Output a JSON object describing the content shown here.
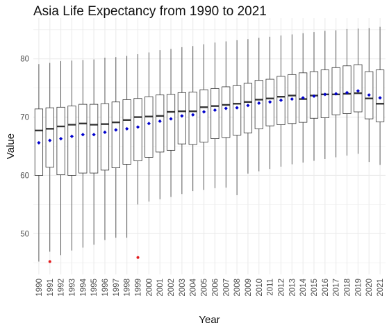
{
  "chart_data": {
    "type": "box",
    "title": "Asia Life Expectancy from 1990 to 2021",
    "xlabel": "Year",
    "ylabel": "Value",
    "ylim": [
      43,
      87
    ],
    "y_ticks": [
      50,
      60,
      70,
      80
    ],
    "grid": true,
    "legend": "none",
    "colors": {
      "box_fill": "#ffffff",
      "box_stroke": "#333333",
      "median": "#333333",
      "mean_point": "#0000cd",
      "outlier": "#e31a1c",
      "grid": "#ebebeb"
    },
    "categories": [
      "1990",
      "1991",
      "1992",
      "1993",
      "1994",
      "1995",
      "1996",
      "1997",
      "1998",
      "1999",
      "2000",
      "2001",
      "2002",
      "2003",
      "2004",
      "2005",
      "2006",
      "2007",
      "2008",
      "2009",
      "2010",
      "2011",
      "2012",
      "2013",
      "2014",
      "2015",
      "2016",
      "2017",
      "2018",
      "2019",
      "2020",
      "2021"
    ],
    "boxes": [
      {
        "x": "1990",
        "min": 45.2,
        "q1": 60.0,
        "median": 67.7,
        "q3": 71.4,
        "max": 79.1,
        "mean": 65.6
      },
      {
        "x": "1991",
        "min": 46.9,
        "q1": 61.4,
        "median": 68.0,
        "q3": 71.6,
        "max": 79.3,
        "mean": 66.0,
        "outliers": [
          45.2
        ]
      },
      {
        "x": "1992",
        "min": 46.3,
        "q1": 60.1,
        "median": 68.4,
        "q3": 71.7,
        "max": 79.6,
        "mean": 66.3
      },
      {
        "x": "1993",
        "min": 47.1,
        "q1": 60.0,
        "median": 68.7,
        "q3": 71.9,
        "max": 79.7,
        "mean": 66.7
      },
      {
        "x": "1994",
        "min": 47.6,
        "q1": 60.4,
        "median": 68.9,
        "q3": 72.2,
        "max": 79.8,
        "mean": 67.0
      },
      {
        "x": "1995",
        "min": 48.1,
        "q1": 60.4,
        "median": 68.7,
        "q3": 72.2,
        "max": 79.9,
        "mean": 67.0
      },
      {
        "x": "1996",
        "min": 48.9,
        "q1": 60.9,
        "median": 68.8,
        "q3": 72.3,
        "max": 80.2,
        "mean": 67.4
      },
      {
        "x": "1997",
        "min": 49.3,
        "q1": 61.3,
        "median": 69.1,
        "q3": 72.6,
        "max": 80.3,
        "mean": 67.8
      },
      {
        "x": "1998",
        "min": 49.3,
        "q1": 61.9,
        "median": 69.5,
        "q3": 73.0,
        "max": 80.5,
        "mean": 68.0
      },
      {
        "x": "1999",
        "min": 55.0,
        "q1": 62.5,
        "median": 70.0,
        "q3": 73.2,
        "max": 80.8,
        "mean": 68.3,
        "outliers": [
          45.9
        ]
      },
      {
        "x": "2000",
        "min": 55.5,
        "q1": 63.1,
        "median": 70.1,
        "q3": 73.5,
        "max": 81.1,
        "mean": 68.9
      },
      {
        "x": "2001",
        "min": 55.9,
        "q1": 64.0,
        "median": 70.2,
        "q3": 73.8,
        "max": 81.5,
        "mean": 69.3
      },
      {
        "x": "2002",
        "min": 56.3,
        "q1": 64.3,
        "median": 70.9,
        "q3": 73.9,
        "max": 81.7,
        "mean": 69.7
      },
      {
        "x": "2003",
        "min": 56.8,
        "q1": 65.4,
        "median": 71.0,
        "q3": 74.2,
        "max": 82.0,
        "mean": 70.2
      },
      {
        "x": "2004",
        "min": 57.3,
        "q1": 65.3,
        "median": 71.0,
        "q3": 74.3,
        "max": 82.2,
        "mean": 70.4
      },
      {
        "x": "2005",
        "min": 57.5,
        "q1": 65.7,
        "median": 71.7,
        "q3": 74.7,
        "max": 82.5,
        "mean": 70.9
      },
      {
        "x": "2006",
        "min": 57.8,
        "q1": 66.3,
        "median": 71.9,
        "q3": 74.9,
        "max": 82.8,
        "mean": 71.2
      },
      {
        "x": "2007",
        "min": 57.9,
        "q1": 66.5,
        "median": 72.1,
        "q3": 75.2,
        "max": 83.0,
        "mean": 71.5
      },
      {
        "x": "2008",
        "min": 56.6,
        "q1": 66.9,
        "median": 72.3,
        "q3": 75.4,
        "max": 83.2,
        "mean": 71.6
      },
      {
        "x": "2009",
        "min": 60.3,
        "q1": 67.3,
        "median": 72.6,
        "q3": 75.8,
        "max": 83.4,
        "mean": 72.0
      },
      {
        "x": "2010",
        "min": 60.7,
        "q1": 68.0,
        "median": 73.0,
        "q3": 76.3,
        "max": 83.6,
        "mean": 72.4
      },
      {
        "x": "2011",
        "min": 61.1,
        "q1": 68.5,
        "median": 73.2,
        "q3": 76.5,
        "max": 83.8,
        "mean": 72.6
      },
      {
        "x": "2012",
        "min": 61.5,
        "q1": 68.7,
        "median": 73.5,
        "q3": 77.0,
        "max": 84.0,
        "mean": 72.9
      },
      {
        "x": "2013",
        "min": 61.9,
        "q1": 68.9,
        "median": 73.7,
        "q3": 77.3,
        "max": 84.2,
        "mean": 73.1
      },
      {
        "x": "2014",
        "min": 62.2,
        "q1": 69.1,
        "median": 73.1,
        "q3": 77.6,
        "max": 84.4,
        "mean": 73.3
      },
      {
        "x": "2015",
        "min": 62.5,
        "q1": 69.8,
        "median": 73.7,
        "q3": 77.8,
        "max": 84.6,
        "mean": 73.6
      },
      {
        "x": "2016",
        "min": 62.8,
        "q1": 69.9,
        "median": 73.9,
        "q3": 78.1,
        "max": 84.8,
        "mean": 73.9
      },
      {
        "x": "2017",
        "min": 63.1,
        "q1": 70.4,
        "median": 73.9,
        "q3": 78.5,
        "max": 84.9,
        "mean": 74.0
      },
      {
        "x": "2018",
        "min": 63.4,
        "q1": 70.6,
        "median": 74.0,
        "q3": 78.8,
        "max": 85.1,
        "mean": 74.2
      },
      {
        "x": "2019",
        "min": 63.7,
        "q1": 70.9,
        "median": 74.1,
        "q3": 79.0,
        "max": 85.2,
        "mean": 74.5
      },
      {
        "x": "2020",
        "min": 62.3,
        "q1": 69.7,
        "median": 73.2,
        "q3": 77.8,
        "max": 85.3,
        "mean": 73.8
      },
      {
        "x": "2021",
        "min": 61.8,
        "q1": 69.2,
        "median": 72.3,
        "q3": 78.1,
        "max": 85.5,
        "mean": 73.3
      }
    ]
  }
}
